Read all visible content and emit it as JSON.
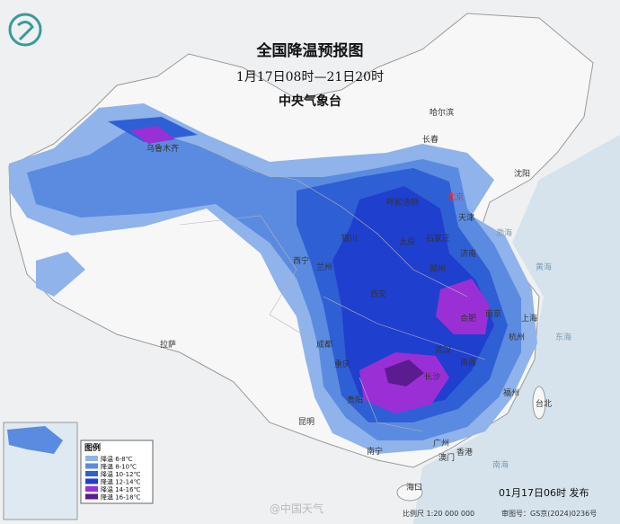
{
  "header": {
    "title": "全国降温预报图",
    "period": "1月17日08时—21日20时",
    "issuer": "中央气象台"
  },
  "legend": {
    "title": "图例",
    "items": [
      {
        "label": "降温 6-8℃",
        "color": "#8fb3ea"
      },
      {
        "label": "降温 8-10℃",
        "color": "#5b8be0"
      },
      {
        "label": "降温 10-12℃",
        "color": "#2f5fd4"
      },
      {
        "label": "降温 12-14℃",
        "color": "#1f3fcf"
      },
      {
        "label": "降温 14-16℃",
        "color": "#9b2fd6"
      },
      {
        "label": "降温 16-18℃",
        "color": "#5a1c8f"
      }
    ]
  },
  "cities": [
    "哈尔滨",
    "长春",
    "沈阳",
    "北京",
    "天津",
    "石家庄",
    "呼和浩特",
    "太原",
    "济南",
    "银川",
    "兰州",
    "西宁",
    "西安",
    "郑州",
    "合肥",
    "南京",
    "上海",
    "杭州",
    "武汉",
    "长沙",
    "南昌",
    "福州",
    "台北",
    "成都",
    "重庆",
    "贵阳",
    "昆明",
    "南宁",
    "广州",
    "澳门",
    "香港",
    "海口",
    "拉萨",
    "乌鲁木齐"
  ],
  "seas": [
    "渤海",
    "黄海",
    "东海",
    "南海"
  ],
  "footer": {
    "release": "01月17日06时 发布",
    "scale": "比例尺 1:20 000 000",
    "map_number": "审图号：GS京(2024)0236号",
    "watermark": "@中国天气"
  }
}
